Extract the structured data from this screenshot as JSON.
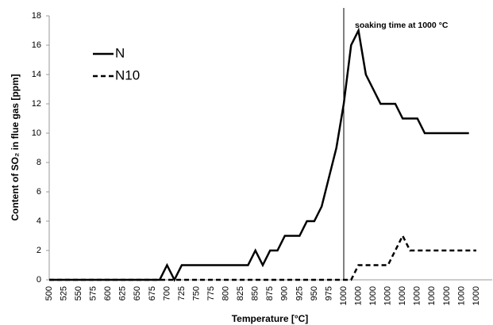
{
  "chart_data": {
    "type": "line",
    "annotation": "soaking time at 1000 °C",
    "x_label": "Temperature [°C]",
    "y_label": "Content of SO₂ in flue gas [ppm]",
    "categories": [
      "500",
      null,
      "525",
      null,
      "550",
      null,
      "575",
      null,
      "600",
      null,
      "625",
      null,
      "650",
      null,
      "675",
      null,
      "700",
      null,
      "725",
      null,
      "750",
      null,
      "775",
      null,
      "800",
      null,
      "825",
      null,
      "850",
      null,
      "875",
      null,
      "900",
      null,
      "925",
      null,
      "950",
      null,
      "975",
      null,
      "1000",
      null,
      "1000",
      null,
      "1000",
      null,
      "1000",
      null,
      "1000",
      null,
      "1000",
      null,
      "1000",
      null,
      "1000",
      null,
      "1000",
      null,
      "1000"
    ],
    "series": [
      {
        "name": "N",
        "color": "#000000",
        "dash": "solid",
        "values": [
          0,
          0,
          0,
          0,
          0,
          0,
          0,
          0,
          0,
          0,
          0,
          0,
          0,
          0,
          0,
          0,
          1,
          0,
          1,
          1,
          1,
          1,
          1,
          1,
          1,
          1,
          1,
          1,
          2,
          1,
          2,
          2,
          3,
          3,
          3,
          4,
          4,
          5,
          7,
          9,
          12,
          16,
          17,
          14,
          13,
          12,
          12,
          12,
          11,
          11,
          11,
          10,
          10,
          10,
          10,
          10,
          10,
          10,
          null
        ]
      },
      {
        "name": "N10",
        "color": "#000000",
        "dash": "dashed",
        "values": [
          0,
          0,
          0,
          0,
          0,
          0,
          0,
          0,
          0,
          0,
          0,
          0,
          0,
          0,
          0,
          0,
          0,
          0,
          0,
          0,
          0,
          0,
          0,
          0,
          0,
          0,
          0,
          0,
          0,
          0,
          0,
          0,
          0,
          0,
          0,
          0,
          0,
          0,
          0,
          0,
          0,
          0,
          1,
          1,
          1,
          1,
          1,
          2,
          3,
          2,
          2,
          2,
          2,
          2,
          2,
          2,
          2,
          2,
          2
        ]
      }
    ],
    "ylim": [
      0,
      18
    ],
    "yticks": [
      0,
      2,
      4,
      6,
      8,
      10,
      12,
      14,
      16,
      18
    ],
    "grid": false,
    "legend": "upper-left"
  }
}
